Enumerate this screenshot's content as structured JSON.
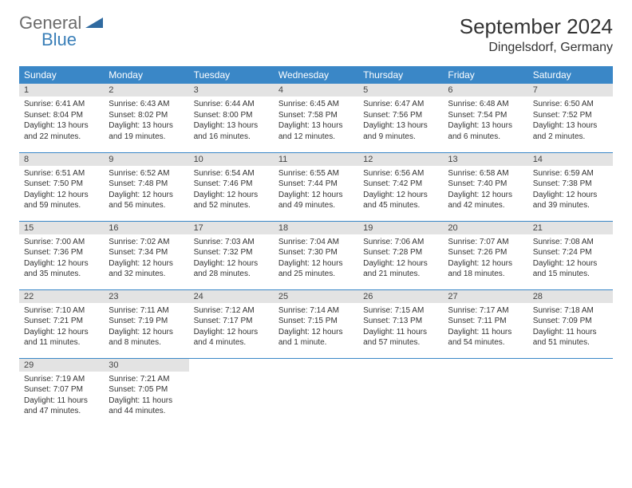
{
  "brand": {
    "name1": "General",
    "name2": "Blue",
    "tri_color": "#2f6aa0"
  },
  "header": {
    "month_title": "September 2024",
    "location": "Dingelsdorf, Germany"
  },
  "colors": {
    "header_bg": "#3a87c7",
    "header_fg": "#ffffff",
    "daynum_bg": "#e3e3e3",
    "rule": "#3a87c7"
  },
  "day_names": [
    "Sunday",
    "Monday",
    "Tuesday",
    "Wednesday",
    "Thursday",
    "Friday",
    "Saturday"
  ],
  "weeks": [
    [
      {
        "n": "1",
        "sr": "6:41 AM",
        "ss": "8:04 PM",
        "dl": "13 hours and 22 minutes."
      },
      {
        "n": "2",
        "sr": "6:43 AM",
        "ss": "8:02 PM",
        "dl": "13 hours and 19 minutes."
      },
      {
        "n": "3",
        "sr": "6:44 AM",
        "ss": "8:00 PM",
        "dl": "13 hours and 16 minutes."
      },
      {
        "n": "4",
        "sr": "6:45 AM",
        "ss": "7:58 PM",
        "dl": "13 hours and 12 minutes."
      },
      {
        "n": "5",
        "sr": "6:47 AM",
        "ss": "7:56 PM",
        "dl": "13 hours and 9 minutes."
      },
      {
        "n": "6",
        "sr": "6:48 AM",
        "ss": "7:54 PM",
        "dl": "13 hours and 6 minutes."
      },
      {
        "n": "7",
        "sr": "6:50 AM",
        "ss": "7:52 PM",
        "dl": "13 hours and 2 minutes."
      }
    ],
    [
      {
        "n": "8",
        "sr": "6:51 AM",
        "ss": "7:50 PM",
        "dl": "12 hours and 59 minutes."
      },
      {
        "n": "9",
        "sr": "6:52 AM",
        "ss": "7:48 PM",
        "dl": "12 hours and 56 minutes."
      },
      {
        "n": "10",
        "sr": "6:54 AM",
        "ss": "7:46 PM",
        "dl": "12 hours and 52 minutes."
      },
      {
        "n": "11",
        "sr": "6:55 AM",
        "ss": "7:44 PM",
        "dl": "12 hours and 49 minutes."
      },
      {
        "n": "12",
        "sr": "6:56 AM",
        "ss": "7:42 PM",
        "dl": "12 hours and 45 minutes."
      },
      {
        "n": "13",
        "sr": "6:58 AM",
        "ss": "7:40 PM",
        "dl": "12 hours and 42 minutes."
      },
      {
        "n": "14",
        "sr": "6:59 AM",
        "ss": "7:38 PM",
        "dl": "12 hours and 39 minutes."
      }
    ],
    [
      {
        "n": "15",
        "sr": "7:00 AM",
        "ss": "7:36 PM",
        "dl": "12 hours and 35 minutes."
      },
      {
        "n": "16",
        "sr": "7:02 AM",
        "ss": "7:34 PM",
        "dl": "12 hours and 32 minutes."
      },
      {
        "n": "17",
        "sr": "7:03 AM",
        "ss": "7:32 PM",
        "dl": "12 hours and 28 minutes."
      },
      {
        "n": "18",
        "sr": "7:04 AM",
        "ss": "7:30 PM",
        "dl": "12 hours and 25 minutes."
      },
      {
        "n": "19",
        "sr": "7:06 AM",
        "ss": "7:28 PM",
        "dl": "12 hours and 21 minutes."
      },
      {
        "n": "20",
        "sr": "7:07 AM",
        "ss": "7:26 PM",
        "dl": "12 hours and 18 minutes."
      },
      {
        "n": "21",
        "sr": "7:08 AM",
        "ss": "7:24 PM",
        "dl": "12 hours and 15 minutes."
      }
    ],
    [
      {
        "n": "22",
        "sr": "7:10 AM",
        "ss": "7:21 PM",
        "dl": "12 hours and 11 minutes."
      },
      {
        "n": "23",
        "sr": "7:11 AM",
        "ss": "7:19 PM",
        "dl": "12 hours and 8 minutes."
      },
      {
        "n": "24",
        "sr": "7:12 AM",
        "ss": "7:17 PM",
        "dl": "12 hours and 4 minutes."
      },
      {
        "n": "25",
        "sr": "7:14 AM",
        "ss": "7:15 PM",
        "dl": "12 hours and 1 minute."
      },
      {
        "n": "26",
        "sr": "7:15 AM",
        "ss": "7:13 PM",
        "dl": "11 hours and 57 minutes."
      },
      {
        "n": "27",
        "sr": "7:17 AM",
        "ss": "7:11 PM",
        "dl": "11 hours and 54 minutes."
      },
      {
        "n": "28",
        "sr": "7:18 AM",
        "ss": "7:09 PM",
        "dl": "11 hours and 51 minutes."
      }
    ],
    [
      {
        "n": "29",
        "sr": "7:19 AM",
        "ss": "7:07 PM",
        "dl": "11 hours and 47 minutes."
      },
      {
        "n": "30",
        "sr": "7:21 AM",
        "ss": "7:05 PM",
        "dl": "11 hours and 44 minutes."
      },
      null,
      null,
      null,
      null,
      null
    ]
  ],
  "labels": {
    "sunrise": "Sunrise: ",
    "sunset": "Sunset: ",
    "daylight": "Daylight: "
  }
}
